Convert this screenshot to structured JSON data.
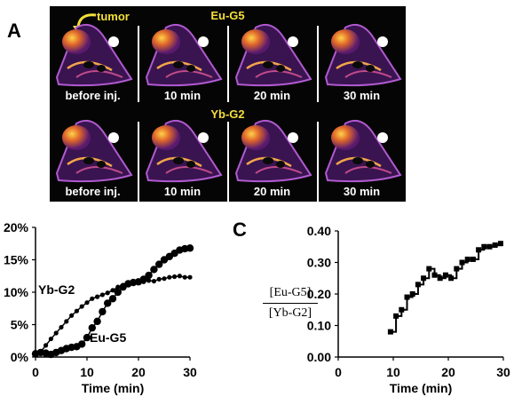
{
  "panel_a": {
    "label": "A",
    "tumor_label": "tumor",
    "rows": [
      {
        "title": "Eu-G5",
        "frames": [
          "before inj.",
          "10 min",
          "20 min",
          "30 min"
        ]
      },
      {
        "title": "Yb-G2",
        "frames": [
          "before inj.",
          "10 min",
          "20 min",
          "30 min"
        ]
      }
    ]
  },
  "panel_c": {
    "label": "C"
  },
  "chart_data": [
    {
      "type": "line",
      "xlabel": "Time (min)",
      "ylabel": "",
      "xlim": [
        0,
        30
      ],
      "ylim": [
        0,
        20
      ],
      "xticks": [
        "0",
        "10",
        "20",
        "30"
      ],
      "yticks": [
        "0%",
        "5%",
        "10%",
        "15%",
        "20%"
      ],
      "series": [
        {
          "name": "Yb-G2",
          "color": "#000000",
          "x": [
            0,
            1,
            2,
            3,
            4,
            5,
            6,
            7,
            8,
            9,
            10,
            11,
            12,
            13,
            14,
            15,
            16,
            17,
            18,
            19,
            20,
            21,
            22,
            23,
            24,
            25,
            26,
            27,
            28,
            29,
            30
          ],
          "y": [
            0.3,
            0.8,
            1.8,
            2.8,
            3.7,
            4.6,
            5.5,
            6.4,
            7.1,
            7.8,
            8.4,
            9.0,
            9.3,
            9.6,
            9.9,
            10.3,
            10.8,
            11.1,
            11.2,
            11.3,
            11.5,
            11.6,
            11.8,
            11.7,
            12.0,
            12.1,
            12.3,
            12.4,
            12.5,
            12.3,
            12.3
          ]
        },
        {
          "name": "Eu-G5",
          "color": "#000000",
          "x": [
            0,
            1,
            2,
            3,
            4,
            5,
            6,
            7,
            8,
            9,
            10,
            11,
            12,
            13,
            14,
            15,
            16,
            17,
            18,
            19,
            20,
            21,
            22,
            23,
            24,
            25,
            26,
            27,
            28,
            29,
            30
          ],
          "y": [
            0.5,
            0.7,
            0.6,
            0.4,
            0.7,
            1.0,
            1.3,
            1.5,
            1.6,
            2.0,
            3.0,
            4.5,
            5.5,
            7.0,
            8.3,
            9.0,
            10.0,
            10.8,
            11.3,
            11.5,
            11.6,
            12.0,
            12.6,
            13.5,
            14.3,
            15.0,
            15.5,
            16.0,
            16.5,
            16.7,
            16.8
          ]
        }
      ]
    },
    {
      "type": "line",
      "xlabel": "Time (min)",
      "ylabel_num": "[Eu-G5]",
      "ylabel_den": "[Yb-G2]",
      "xlim": [
        0,
        30
      ],
      "ylim": [
        0,
        0.4
      ],
      "xticks": [
        "0",
        "10",
        "20",
        "30"
      ],
      "yticks": [
        "0.00",
        "0.10",
        "0.20",
        "0.30",
        "0.40"
      ],
      "series": [
        {
          "name": "",
          "color": "#000000",
          "x": [
            9.5,
            10.5,
            11.5,
            12.5,
            13.5,
            14.5,
            15.5,
            16.5,
            17.5,
            18.5,
            19.5,
            20.5,
            21.5,
            22.5,
            23.5,
            24.5,
            25.5,
            26.5,
            27.5,
            28.5,
            29.5
          ],
          "y": [
            0.08,
            0.13,
            0.15,
            0.19,
            0.2,
            0.23,
            0.25,
            0.28,
            0.26,
            0.25,
            0.26,
            0.25,
            0.28,
            0.3,
            0.31,
            0.31,
            0.34,
            0.35,
            0.35,
            0.355,
            0.36
          ]
        }
      ]
    }
  ]
}
